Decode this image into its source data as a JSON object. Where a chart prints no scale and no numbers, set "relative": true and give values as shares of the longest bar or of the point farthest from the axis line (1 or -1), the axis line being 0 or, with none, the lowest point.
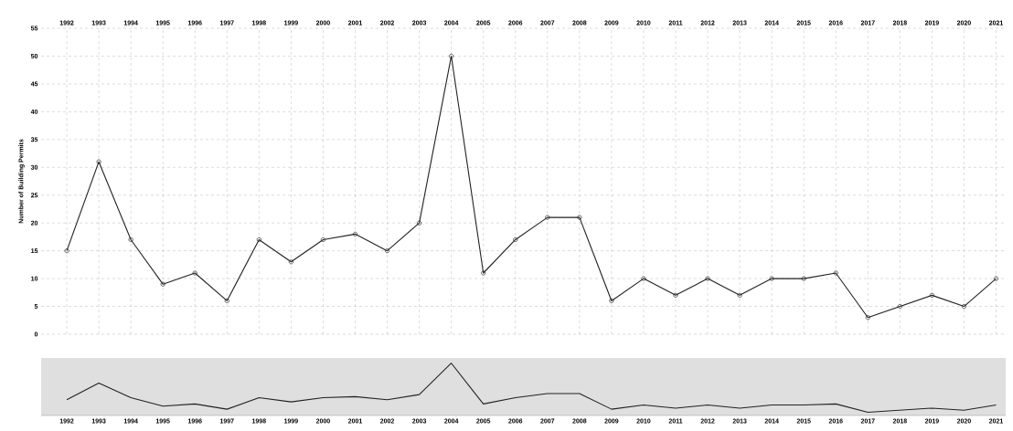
{
  "chart_data": [
    {
      "type": "line",
      "ylabel": "Number of Building Permits",
      "categories": [
        "1992",
        "1993",
        "1994",
        "1995",
        "1996",
        "1997",
        "1998",
        "1999",
        "2000",
        "2001",
        "2002",
        "2003",
        "2004",
        "2005",
        "2006",
        "2007",
        "2008",
        "2009",
        "2010",
        "2011",
        "2012",
        "2013",
        "2014",
        "2015",
        "2016",
        "2017",
        "2018",
        "2019",
        "2020",
        "2021"
      ],
      "series": [
        {
          "color": "#222222",
          "values": [
            15,
            31,
            17,
            9,
            11,
            6,
            17,
            13,
            17,
            18,
            15,
            20,
            50,
            11,
            17,
            21,
            21,
            6,
            10,
            7,
            10,
            7,
            10,
            10,
            11,
            3,
            5,
            7,
            5,
            10
          ]
        }
      ],
      "ylim": [
        0,
        55
      ],
      "yticks": [
        0,
        5,
        10,
        15,
        20,
        25,
        30,
        35,
        40,
        45,
        50,
        55
      ],
      "grid": true,
      "marker": "circle"
    },
    {
      "type": "line",
      "relative": true,
      "tick_labels": "x",
      "categories": [
        "1992",
        "1993",
        "1994",
        "1995",
        "1996",
        "1997",
        "1998",
        "1999",
        "2000",
        "2001",
        "2002",
        "2003",
        "2004",
        "2005",
        "2006",
        "2007",
        "2008",
        "2009",
        "2010",
        "2011",
        "2012",
        "2013",
        "2014",
        "2015",
        "2016",
        "2017",
        "2018",
        "2019",
        "2020",
        "2021"
      ],
      "series": [
        {
          "color": "#222222",
          "values": [
            0.3,
            0.62,
            0.34,
            0.18,
            0.22,
            0.12,
            0.34,
            0.26,
            0.34,
            0.36,
            0.3,
            0.4,
            1,
            0.22,
            0.34,
            0.42,
            0.42,
            0.12,
            0.2,
            0.14,
            0.2,
            0.14,
            0.2,
            0.2,
            0.22,
            0.06,
            0.1,
            0.14,
            0.1,
            0.2
          ]
        }
      ],
      "marker": "none"
    }
  ]
}
